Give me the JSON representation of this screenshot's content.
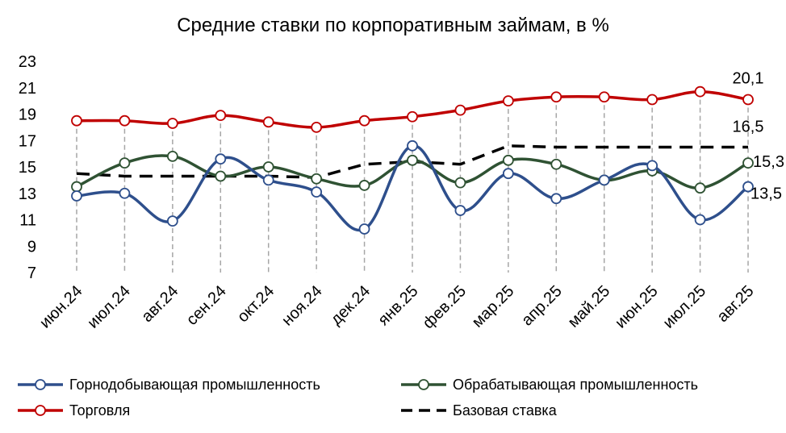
{
  "chart_data": {
    "type": "line",
    "title": "Средние ставки по корпоративным займам, в %",
    "categories": [
      "июн.24",
      "июл.24",
      "авг.24",
      "сен.24",
      "окт.24",
      "ноя.24",
      "дек.24",
      "янв.25",
      "фев.25",
      "мар.25",
      "апр.25",
      "май.25",
      "июн.25",
      "июл.25",
      "авг.25"
    ],
    "ylim": [
      7,
      23
    ],
    "yticks": [
      7,
      9,
      11,
      13,
      15,
      17,
      19,
      21,
      23
    ],
    "grid": "vertical dashed drop lines",
    "legend_position": "bottom",
    "series": [
      {
        "name": "Горнодобывающая промышленность",
        "color": "#2e4f8c",
        "style": "smooth-markers",
        "values": [
          12.8,
          13.0,
          10.9,
          15.6,
          14.0,
          13.1,
          10.3,
          16.6,
          11.7,
          14.5,
          12.6,
          14.0,
          15.1,
          11.0,
          13.5
        ],
        "end_label": "13,5"
      },
      {
        "name": "Обрабатывающая промышленность",
        "color": "#2f5233",
        "style": "smooth-markers",
        "values": [
          13.5,
          15.3,
          15.8,
          14.3,
          15.0,
          14.1,
          13.6,
          15.5,
          13.8,
          15.5,
          15.2,
          14.0,
          14.7,
          13.4,
          15.3
        ],
        "end_label": "15,3"
      },
      {
        "name": "Торговля",
        "color": "#c00000",
        "style": "smooth-markers",
        "values": [
          18.5,
          18.5,
          18.3,
          18.9,
          18.4,
          18.0,
          18.5,
          18.8,
          19.3,
          20.0,
          20.3,
          20.3,
          20.1,
          20.7,
          20.1
        ],
        "end_label": "20,1"
      },
      {
        "name": "Базовая ставка",
        "color": "#000000",
        "style": "dashed",
        "values": [
          14.5,
          14.3,
          14.3,
          14.3,
          14.3,
          14.2,
          15.2,
          15.4,
          15.2,
          16.6,
          16.5,
          16.5,
          16.5,
          16.5,
          16.5
        ],
        "end_label": "16,5"
      }
    ]
  }
}
